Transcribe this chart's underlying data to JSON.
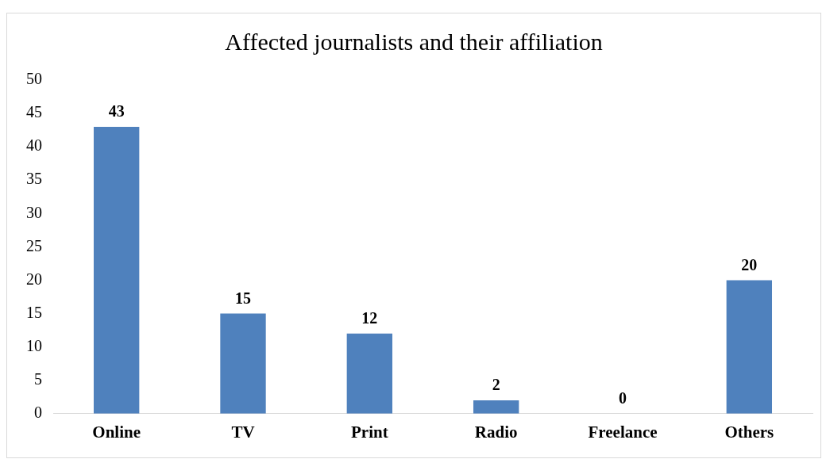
{
  "chart_data": {
    "type": "bar",
    "title": "Affected journalists and their affiliation",
    "categories": [
      "Online",
      "TV",
      "Print",
      "Radio",
      "Freelance",
      "Others"
    ],
    "values": [
      43,
      15,
      12,
      2,
      0,
      20
    ],
    "color": "#4f81bd",
    "ylim": [
      0,
      50
    ],
    "yticks": [
      0,
      5,
      10,
      15,
      20,
      25,
      30,
      35,
      40,
      45,
      50
    ],
    "grid": false,
    "data_labels": true
  }
}
